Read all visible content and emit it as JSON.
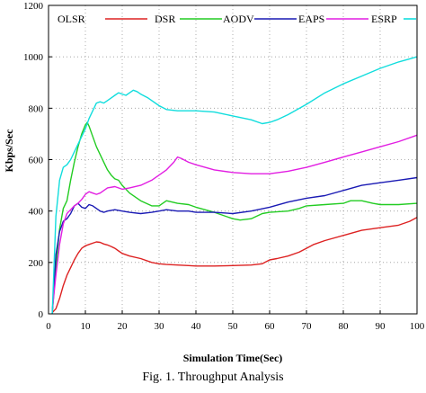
{
  "caption": "Fig. 1.  Throughput Analysis",
  "chart_data": {
    "type": "line",
    "title": "",
    "xlabel": "Simulation Time(Sec)",
    "ylabel": "Kbps/Sec",
    "xlim": [
      0,
      100
    ],
    "ylim": [
      0,
      1200
    ],
    "xticks": [
      0,
      10,
      20,
      30,
      40,
      50,
      60,
      70,
      80,
      90,
      100
    ],
    "yticks": [
      0,
      200,
      400,
      600,
      800,
      1000,
      1200
    ],
    "grid": true,
    "legend_position": "top",
    "series": [
      {
        "name": "OLSR",
        "color": "#dd2222",
        "x": [
          1,
          2,
          3,
          4,
          5,
          6,
          7,
          8,
          9,
          10,
          11,
          12,
          13,
          14,
          15,
          16,
          17,
          18,
          19,
          20,
          22,
          25,
          28,
          30,
          32,
          35,
          38,
          40,
          45,
          50,
          55,
          58,
          60,
          62,
          65,
          68,
          70,
          72,
          75,
          80,
          85,
          90,
          95,
          98,
          100
        ],
        "y": [
          5,
          20,
          60,
          110,
          150,
          180,
          210,
          235,
          255,
          265,
          270,
          275,
          280,
          278,
          272,
          268,
          262,
          255,
          245,
          235,
          225,
          215,
          200,
          195,
          192,
          190,
          188,
          186,
          186,
          188,
          190,
          195,
          210,
          215,
          225,
          240,
          255,
          270,
          285,
          305,
          325,
          335,
          345,
          360,
          375
        ]
      },
      {
        "name": "DSR",
        "color": "#22cc22",
        "x": [
          1,
          2,
          3,
          4,
          5,
          6,
          7,
          8,
          9,
          10,
          10.5,
          11,
          12,
          13,
          14,
          15,
          16,
          17,
          18,
          19,
          20,
          22,
          25,
          28,
          30,
          32,
          35,
          38,
          40,
          45,
          50,
          52,
          55,
          58,
          60,
          65,
          68,
          70,
          75,
          80,
          82,
          85,
          88,
          90,
          95,
          100
        ],
        "y": [
          0,
          180,
          330,
          410,
          440,
          520,
          590,
          650,
          700,
          735,
          745,
          730,
          690,
          650,
          620,
          590,
          560,
          540,
          525,
          520,
          500,
          470,
          440,
          420,
          420,
          440,
          430,
          425,
          415,
          395,
          370,
          365,
          370,
          390,
          395,
          400,
          410,
          420,
          425,
          430,
          440,
          440,
          430,
          425,
          425,
          430
        ]
      },
      {
        "name": "AODV",
        "color": "#1a1ab4",
        "x": [
          1,
          2,
          3,
          4,
          5,
          6,
          7,
          8,
          9,
          10,
          11,
          12,
          13,
          14,
          15,
          16,
          18,
          20,
          22,
          25,
          28,
          30,
          32,
          35,
          38,
          40,
          45,
          50,
          55,
          60,
          65,
          70,
          75,
          80,
          85,
          90,
          95,
          100
        ],
        "y": [
          0,
          230,
          320,
          360,
          370,
          390,
          420,
          430,
          415,
          410,
          425,
          420,
          410,
          400,
          395,
          400,
          405,
          400,
          395,
          390,
          395,
          400,
          405,
          400,
          400,
          395,
          395,
          390,
          400,
          415,
          435,
          450,
          460,
          480,
          500,
          510,
          520,
          530
        ]
      },
      {
        "name": "EAPS",
        "color": "#e21ee2",
        "x": [
          1,
          2,
          3,
          4,
          5,
          6,
          7,
          8,
          9,
          10,
          11,
          12,
          13,
          14,
          15,
          16,
          18,
          20,
          22,
          25,
          28,
          30,
          32,
          34,
          35,
          36,
          38,
          40,
          45,
          50,
          55,
          60,
          65,
          70,
          75,
          80,
          85,
          90,
          95,
          100
        ],
        "y": [
          10,
          150,
          270,
          350,
          390,
          405,
          420,
          430,
          445,
          465,
          475,
          470,
          465,
          470,
          480,
          490,
          495,
          485,
          490,
          500,
          520,
          540,
          560,
          590,
          610,
          605,
          590,
          580,
          560,
          550,
          545,
          545,
          555,
          570,
          590,
          610,
          630,
          650,
          670,
          695
        ]
      },
      {
        "name": "ESRP",
        "color": "#11dddd",
        "x": [
          1,
          2,
          3,
          4,
          5,
          6,
          7,
          8,
          9,
          10,
          11,
          12,
          13,
          14,
          15,
          16,
          17,
          18,
          19,
          20,
          21,
          22,
          23,
          24,
          25,
          27,
          30,
          32,
          35,
          38,
          40,
          45,
          50,
          55,
          58,
          60,
          62,
          65,
          70,
          75,
          80,
          85,
          90,
          95,
          100
        ],
        "y": [
          0,
          380,
          520,
          570,
          580,
          600,
          630,
          660,
          690,
          720,
          760,
          790,
          820,
          825,
          820,
          830,
          840,
          850,
          860,
          855,
          850,
          860,
          870,
          865,
          855,
          840,
          810,
          795,
          790,
          790,
          790,
          785,
          770,
          755,
          740,
          745,
          755,
          775,
          815,
          860,
          895,
          925,
          955,
          980,
          1000
        ]
      }
    ]
  }
}
